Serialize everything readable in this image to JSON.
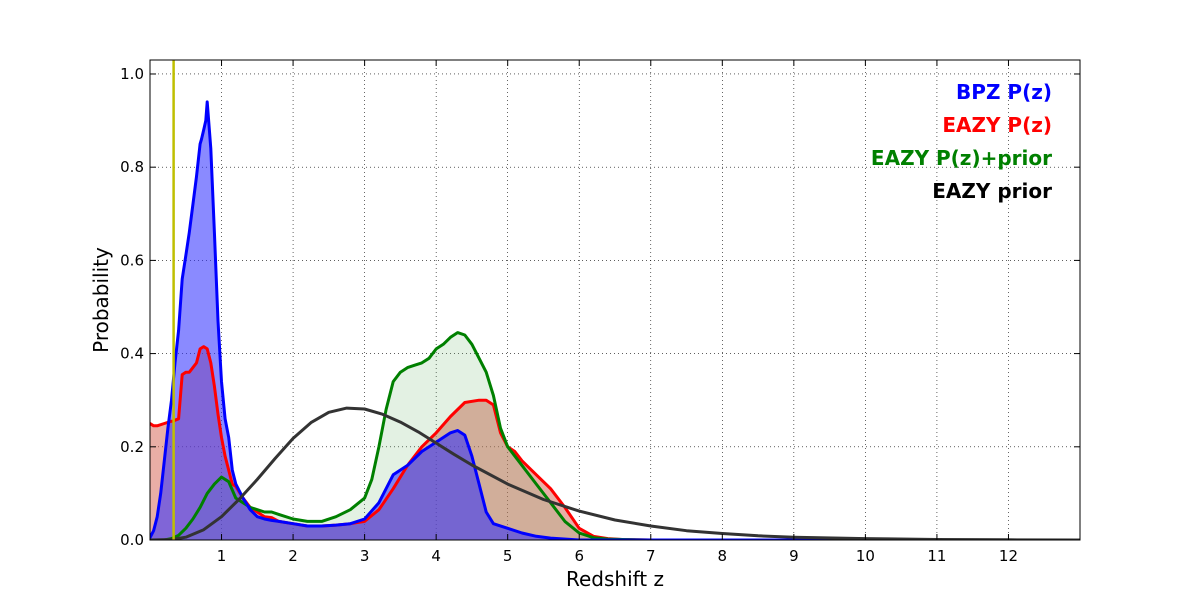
{
  "chart_data": {
    "type": "area",
    "title": "",
    "xlabel": "Redshift z",
    "ylabel": "Probability",
    "xlim": [
      0,
      13
    ],
    "ylim": [
      0,
      1.03
    ],
    "xticks": [
      1,
      2,
      3,
      4,
      5,
      6,
      7,
      8,
      9,
      10,
      11,
      12
    ],
    "xtick_labels": [
      "1",
      "2",
      "3",
      "4",
      "5",
      "6",
      "7",
      "8",
      "9",
      "10",
      "11",
      "12"
    ],
    "yticks": [
      0.0,
      0.2,
      0.4,
      0.6,
      0.8,
      1.0
    ],
    "ytick_labels": [
      "0.0",
      "0.2",
      "0.4",
      "0.6",
      "0.8",
      "1.0"
    ],
    "grid": true,
    "legend_placement": "top-right",
    "vertical_line": {
      "x": 0.33,
      "color": "#bfbf00"
    },
    "series": [
      {
        "name": "EAZY P(z)",
        "color": "#ff0000",
        "fill": "#d35d4e",
        "fill_opacity": 0.5,
        "x": [
          0,
          0.05,
          0.1,
          0.2,
          0.3,
          0.33,
          0.35,
          0.4,
          0.45,
          0.5,
          0.55,
          0.6,
          0.65,
          0.7,
          0.75,
          0.8,
          0.85,
          0.9,
          0.95,
          1.0,
          1.05,
          1.1,
          1.15,
          1.2,
          1.3,
          1.4,
          1.5,
          1.6,
          1.7,
          1.8,
          2.0,
          2.2,
          2.4,
          2.6,
          2.8,
          3.0,
          3.2,
          3.4,
          3.6,
          3.8,
          4.0,
          4.2,
          4.4,
          4.6,
          4.7,
          4.8,
          4.9,
          5.0,
          5.1,
          5.2,
          5.4,
          5.6,
          5.8,
          6.0,
          6.2,
          6.4,
          6.6,
          7.0,
          8.0,
          10.0,
          13.0
        ],
        "y": [
          0.25,
          0.245,
          0.245,
          0.25,
          0.255,
          0.255,
          0.257,
          0.26,
          0.355,
          0.36,
          0.36,
          0.37,
          0.38,
          0.41,
          0.415,
          0.41,
          0.38,
          0.33,
          0.27,
          0.22,
          0.18,
          0.15,
          0.12,
          0.115,
          0.09,
          0.07,
          0.06,
          0.05,
          0.048,
          0.04,
          0.035,
          0.03,
          0.03,
          0.032,
          0.035,
          0.04,
          0.065,
          0.11,
          0.16,
          0.2,
          0.23,
          0.265,
          0.295,
          0.3,
          0.3,
          0.29,
          0.23,
          0.2,
          0.19,
          0.17,
          0.14,
          0.11,
          0.07,
          0.025,
          0.008,
          0.003,
          0.001,
          0.0,
          0.0,
          0.0,
          0.0
        ]
      },
      {
        "name": "EAZY P(z)+prior",
        "color": "#008000",
        "fill": "#66b266",
        "fill_opacity": 0.18,
        "x": [
          0,
          0.2,
          0.3,
          0.4,
          0.5,
          0.6,
          0.7,
          0.8,
          0.9,
          1.0,
          1.1,
          1.2,
          1.3,
          1.4,
          1.5,
          1.6,
          1.7,
          1.8,
          2.0,
          2.2,
          2.4,
          2.6,
          2.8,
          3.0,
          3.1,
          3.2,
          3.3,
          3.4,
          3.5,
          3.6,
          3.7,
          3.8,
          3.9,
          4.0,
          4.1,
          4.2,
          4.3,
          4.4,
          4.5,
          4.6,
          4.7,
          4.8,
          4.9,
          5.0,
          5.2,
          5.4,
          5.6,
          5.8,
          6.0,
          6.2,
          6.4,
          6.6,
          7.0,
          8.0,
          13.0
        ],
        "y": [
          0.0,
          0.0,
          0.003,
          0.01,
          0.025,
          0.045,
          0.07,
          0.1,
          0.12,
          0.135,
          0.125,
          0.09,
          0.08,
          0.07,
          0.065,
          0.06,
          0.06,
          0.055,
          0.045,
          0.04,
          0.04,
          0.05,
          0.065,
          0.09,
          0.13,
          0.2,
          0.28,
          0.34,
          0.36,
          0.37,
          0.375,
          0.38,
          0.39,
          0.41,
          0.42,
          0.435,
          0.445,
          0.44,
          0.42,
          0.39,
          0.36,
          0.31,
          0.24,
          0.2,
          0.16,
          0.12,
          0.08,
          0.04,
          0.015,
          0.005,
          0.002,
          0.001,
          0.0,
          0.0,
          0.0
        ]
      },
      {
        "name": "BPZ P(z)",
        "color": "#0000ff",
        "fill": "#2a2aff",
        "fill_opacity": 0.55,
        "x": [
          0,
          0.05,
          0.1,
          0.15,
          0.2,
          0.25,
          0.3,
          0.35,
          0.4,
          0.45,
          0.5,
          0.55,
          0.6,
          0.65,
          0.7,
          0.72,
          0.75,
          0.78,
          0.8,
          0.85,
          0.9,
          0.95,
          1.0,
          1.05,
          1.1,
          1.15,
          1.2,
          1.3,
          1.4,
          1.5,
          1.6,
          1.7,
          1.8,
          2.0,
          2.2,
          2.4,
          2.6,
          2.8,
          3.0,
          3.2,
          3.4,
          3.6,
          3.8,
          4.0,
          4.2,
          4.3,
          4.4,
          4.5,
          4.6,
          4.7,
          4.8,
          5.0,
          5.2,
          5.4,
          5.6,
          6.0,
          7.0,
          13.0
        ],
        "y": [
          0.005,
          0.02,
          0.05,
          0.1,
          0.17,
          0.24,
          0.3,
          0.38,
          0.45,
          0.56,
          0.61,
          0.66,
          0.72,
          0.78,
          0.85,
          0.86,
          0.88,
          0.9,
          0.94,
          0.84,
          0.66,
          0.47,
          0.34,
          0.26,
          0.22,
          0.15,
          0.12,
          0.09,
          0.065,
          0.05,
          0.045,
          0.042,
          0.04,
          0.035,
          0.03,
          0.03,
          0.032,
          0.035,
          0.045,
          0.08,
          0.14,
          0.16,
          0.19,
          0.21,
          0.23,
          0.235,
          0.225,
          0.18,
          0.12,
          0.06,
          0.035,
          0.025,
          0.015,
          0.008,
          0.004,
          0.0,
          0.0,
          0.0
        ]
      },
      {
        "name": "EAZY prior",
        "color": "#333333",
        "fill": "none",
        "fill_opacity": 0,
        "x": [
          0,
          0.3,
          0.5,
          0.75,
          1.0,
          1.25,
          1.5,
          1.75,
          2.0,
          2.25,
          2.5,
          2.75,
          3.0,
          3.25,
          3.5,
          3.75,
          4.0,
          4.25,
          4.5,
          5.0,
          5.5,
          6.0,
          6.5,
          7.0,
          7.5,
          8.0,
          8.5,
          9.0,
          10.0,
          11.0,
          12.0,
          13.0
        ],
        "y": [
          0.0,
          0.001,
          0.006,
          0.022,
          0.05,
          0.088,
          0.13,
          0.175,
          0.218,
          0.252,
          0.274,
          0.283,
          0.281,
          0.27,
          0.253,
          0.232,
          0.208,
          0.184,
          0.161,
          0.12,
          0.087,
          0.062,
          0.043,
          0.03,
          0.02,
          0.014,
          0.009,
          0.006,
          0.003,
          0.001,
          0.0005,
          0.0
        ]
      }
    ],
    "legend": [
      {
        "label": "BPZ P(z)",
        "color": "#0000ff"
      },
      {
        "label": "EAZY P(z)",
        "color": "#ff0000"
      },
      {
        "label": "EAZY P(z)+prior",
        "color": "#008000"
      },
      {
        "label": "EAZY prior",
        "color": "#000000"
      }
    ]
  }
}
